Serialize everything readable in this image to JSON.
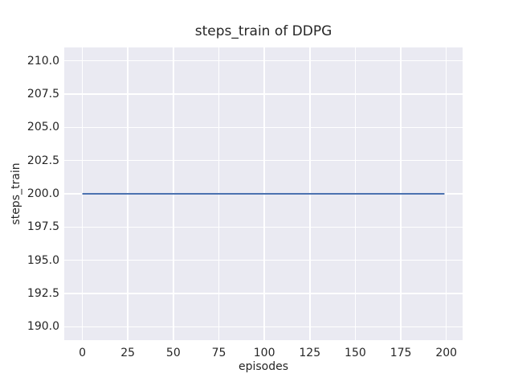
{
  "chart_data": {
    "type": "line",
    "title": "steps_train of DDPG",
    "xlabel": "episodes",
    "ylabel": "steps_train",
    "xlim": [
      -9.95,
      208.95
    ],
    "ylim": [
      189.0,
      211.0
    ],
    "x_ticks": [
      0,
      25,
      50,
      75,
      100,
      125,
      150,
      175,
      200
    ],
    "x_tick_labels": [
      "0",
      "25",
      "50",
      "75",
      "100",
      "125",
      "150",
      "175",
      "200"
    ],
    "y_ticks": [
      190.0,
      192.5,
      195.0,
      197.5,
      200.0,
      202.5,
      205.0,
      207.5,
      210.0
    ],
    "y_tick_labels": [
      "190.0",
      "192.5",
      "195.0",
      "197.5",
      "200.0",
      "202.5",
      "205.0",
      "207.5",
      "210.0"
    ],
    "grid": true,
    "legend_position": "none",
    "series": [
      {
        "name": "steps_train",
        "x": [
          0,
          199
        ],
        "y": [
          200,
          200
        ],
        "color": "#4c72b0",
        "linewidth": 2
      }
    ],
    "style": {
      "figure_bg": "#ffffff",
      "plot_bg": "#eaeaf2",
      "grid_color": "#ffffff",
      "text_color": "#262626"
    }
  }
}
